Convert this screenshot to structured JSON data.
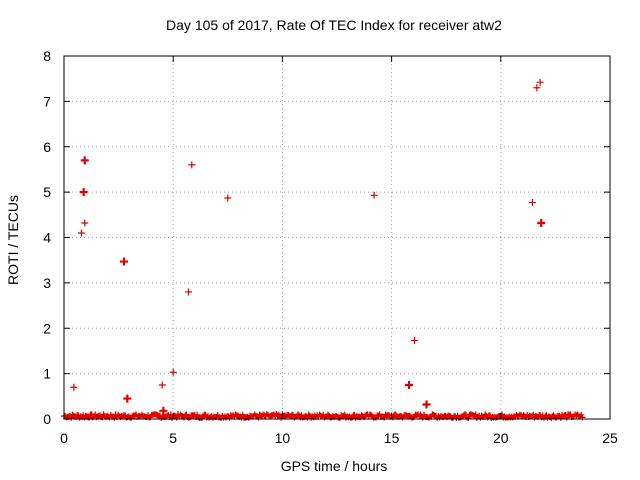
{
  "chart_data": {
    "type": "scatter",
    "title": "Day 105 of 2017, Rate Of TEC Index for receiver atw2",
    "xlabel": "GPS time / hours",
    "ylabel": "ROTI / TECUs",
    "xlim": [
      0,
      25
    ],
    "ylim": [
      0,
      8
    ],
    "xticks": [
      0,
      5,
      10,
      15,
      20,
      25
    ],
    "yticks": [
      0,
      1,
      2,
      3,
      4,
      5,
      6,
      7,
      8
    ],
    "grid": true,
    "marker": "plus",
    "color": "#e00000",
    "series": [
      {
        "points": [
          {
            "x": 0.45,
            "y": 0.7
          },
          {
            "x": 0.8,
            "y": 4.1
          },
          {
            "x": 0.95,
            "y": 4.32
          },
          {
            "x": 0.9,
            "y": 5.0,
            "bold": true
          },
          {
            "x": 0.95,
            "y": 5.7,
            "bold": true
          },
          {
            "x": 2.75,
            "y": 3.47,
            "bold": true
          },
          {
            "x": 2.9,
            "y": 0.45,
            "bold": true
          },
          {
            "x": 4.5,
            "y": 0.75
          },
          {
            "x": 4.55,
            "y": 0.18,
            "bold": true
          },
          {
            "x": 5.0,
            "y": 1.03
          },
          {
            "x": 5.7,
            "y": 2.8
          },
          {
            "x": 5.85,
            "y": 5.6
          },
          {
            "x": 7.5,
            "y": 4.87
          },
          {
            "x": 14.2,
            "y": 4.93
          },
          {
            "x": 15.8,
            "y": 0.75,
            "bold": true
          },
          {
            "x": 16.05,
            "y": 1.73
          },
          {
            "x": 16.6,
            "y": 0.32,
            "bold": true
          },
          {
            "x": 21.45,
            "y": 4.77
          },
          {
            "x": 21.65,
            "y": 7.3
          },
          {
            "x": 21.8,
            "y": 7.42
          },
          {
            "x": 21.85,
            "y": 4.32,
            "bold": true
          }
        ],
        "baseline_band": {
          "x_start": 0.0,
          "x_end": 23.75,
          "y_min": 0.0,
          "y_max": 0.1
        }
      }
    ]
  }
}
